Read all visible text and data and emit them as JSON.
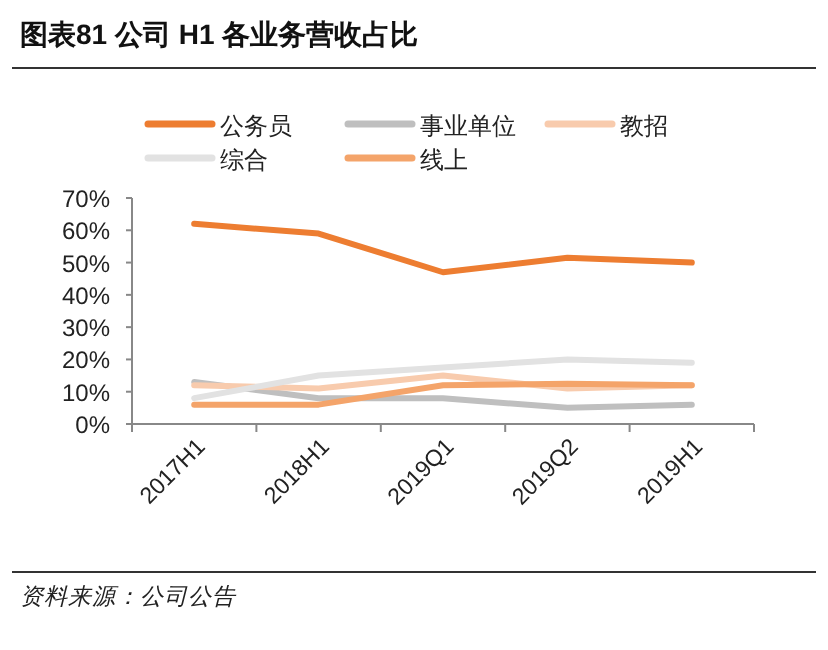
{
  "chart_data": {
    "type": "line",
    "title": "图表81    公司 H1 各业务营收占比",
    "categories": [
      "2017H1",
      "2018H1",
      "2019Q1",
      "2019Q2",
      "2019H1"
    ],
    "series": [
      {
        "name": "公务员",
        "color": "#ed7d31",
        "values": [
          62,
          59,
          47,
          51.5,
          50
        ]
      },
      {
        "name": "事业单位",
        "color": "#bfbfbf",
        "values": [
          13,
          8,
          8,
          5,
          6
        ]
      },
      {
        "name": "教招",
        "color": "#f8cbad",
        "values": [
          12,
          11,
          15,
          11,
          12
        ]
      },
      {
        "name": "综合",
        "color": "#e2e2e2",
        "values": [
          8,
          15,
          17.5,
          20,
          19
        ]
      },
      {
        "name": "线上",
        "color": "#f4a46a",
        "values": [
          6,
          6,
          12,
          12.5,
          12
        ]
      }
    ],
    "ylim": [
      0,
      70
    ],
    "yticks": [
      {
        "value": 0,
        "label": "0%"
      },
      {
        "value": 10,
        "label": "10%"
      },
      {
        "value": 20,
        "label": "20%"
      },
      {
        "value": 30,
        "label": "30%"
      },
      {
        "value": 40,
        "label": "40%"
      },
      {
        "value": 50,
        "label": "50%"
      },
      {
        "value": 60,
        "label": "60%"
      },
      {
        "value": 70,
        "label": "70%"
      }
    ],
    "grid": false,
    "legend": "top",
    "annotations": [
      "资料来源：公司公告"
    ]
  }
}
